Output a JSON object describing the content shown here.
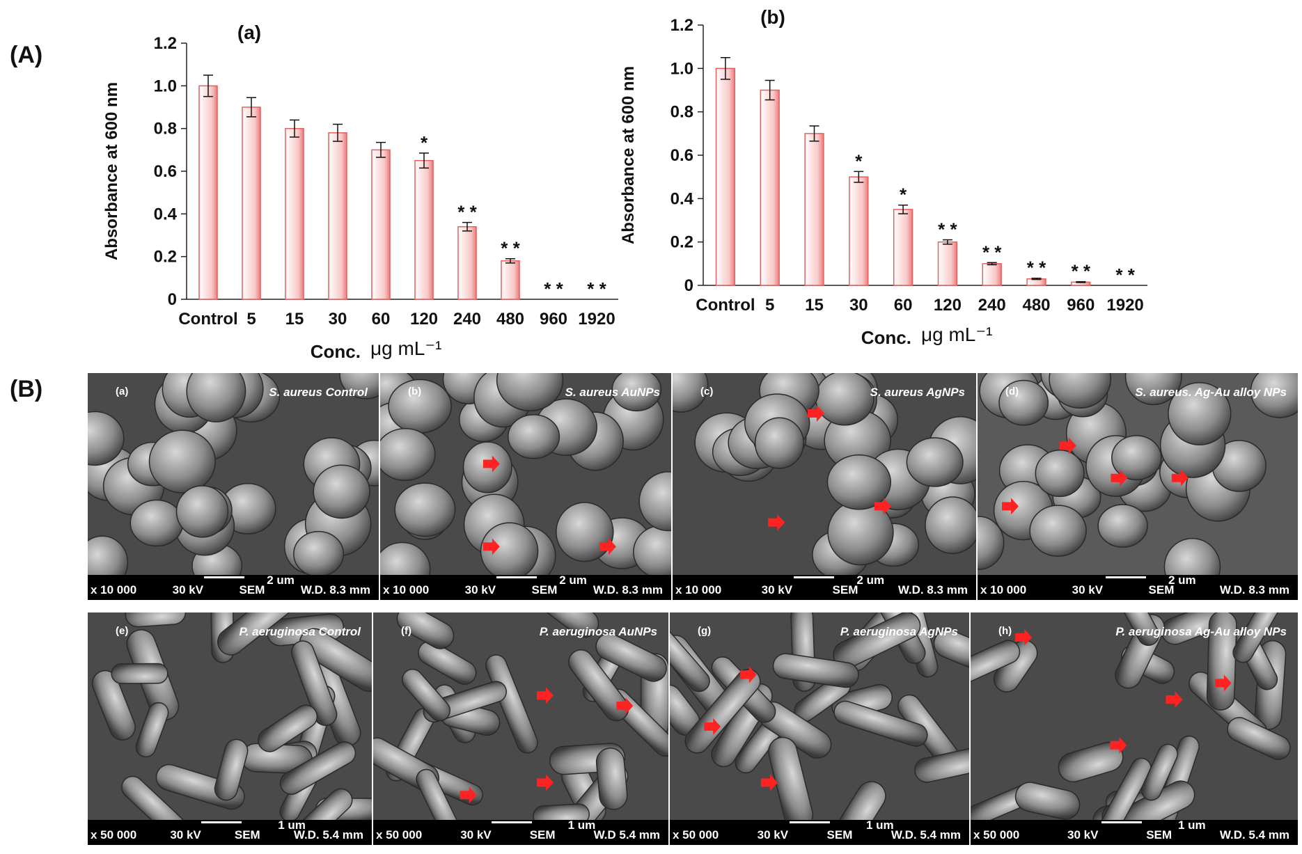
{
  "panels": {
    "A": "(A)",
    "B": "(B)"
  },
  "chart_data": [
    {
      "type": "bar",
      "title": "(a)",
      "ylabel": "Absorbance at 600 nm",
      "xlabel_text": "Conc.",
      "xlabel_unit": "μg mL⁻¹",
      "categories": [
        "Control",
        "5",
        "15",
        "30",
        "60",
        "120",
        "240",
        "480",
        "960",
        "1920"
      ],
      "values": [
        1.0,
        0.9,
        0.8,
        0.78,
        0.7,
        0.65,
        0.34,
        0.18,
        0,
        0
      ],
      "errors": [
        0.05,
        0.045,
        0.04,
        0.04,
        0.035,
        0.035,
        0.02,
        0.01,
        0,
        0
      ],
      "significance": [
        "",
        "",
        "",
        "",
        "",
        "*",
        "* *",
        "* *",
        "* *",
        "* *"
      ],
      "yticks": [
        "0",
        "0.2",
        "0.4",
        "0.6",
        "0.8",
        "1.0",
        "1.2"
      ],
      "ylim": [
        0,
        1.2
      ],
      "bar_color": "#f4a0a0",
      "grid": false
    },
    {
      "type": "bar",
      "title": "(b)",
      "ylabel": "Absorbance at 600 nm",
      "xlabel_text": "Conc.",
      "xlabel_unit": "μg mL⁻¹",
      "categories": [
        "Control",
        "5",
        "15",
        "30",
        "60",
        "120",
        "240",
        "480",
        "960",
        "1920"
      ],
      "values": [
        1.0,
        0.9,
        0.7,
        0.5,
        0.35,
        0.2,
        0.1,
        0.03,
        0.015,
        0
      ],
      "errors": [
        0.05,
        0.045,
        0.035,
        0.025,
        0.02,
        0.01,
        0.005,
        0.003,
        0.002,
        0
      ],
      "significance": [
        "",
        "",
        "",
        "*",
        "*",
        "* *",
        "* *",
        "* *",
        "* *",
        "* *"
      ],
      "yticks": [
        "0",
        "0.2",
        "0.4",
        "0.6",
        "0.8",
        "1.0",
        "1.2"
      ],
      "ylim": [
        0,
        1.2
      ],
      "bar_color": "#f4a0a0",
      "grid": false
    }
  ],
  "sem": [
    {
      "tag": "(a)",
      "title": "S. aureus  Control",
      "scale": "2 um",
      "mag": "x 10 000",
      "kv": "30 kV",
      "mode": "SEM",
      "wd": "W.D. 8.3 mm",
      "shape": "coccus"
    },
    {
      "tag": "(b)",
      "title": "S. aureus  AuNPs",
      "scale": "2 um",
      "mag": "x 10 000",
      "kv": "30 kV",
      "mode": "SEM",
      "wd": "W.D. 8.3 mm",
      "shape": "coccus"
    },
    {
      "tag": "(c)",
      "title": "S. aureus AgNPs",
      "scale": "2 um",
      "mag": "x 10 000",
      "kv": "30 kV",
      "mode": "SEM",
      "wd": "W.D. 8.3 mm",
      "shape": "coccus"
    },
    {
      "tag": "(d)",
      "title": "S. aureus. Ag-Au alloy NPs",
      "scale": "2 um",
      "mag": "x 10 000",
      "kv": "30 kV",
      "mode": "SEM",
      "wd": "W.D. 8.3 mm",
      "shape": "coccus"
    },
    {
      "tag": "(e)",
      "title": "P. aeruginosa Control",
      "scale": "1 um",
      "mag": "x 50 000",
      "kv": "30 kV",
      "mode": "SEM",
      "wd": "W.D.  5.4 mm",
      "shape": "rod"
    },
    {
      "tag": "(f)",
      "title": "P. aeruginosa AuNPs",
      "scale": "1 um",
      "mag": "x 50 000",
      "kv": "30 kV",
      "mode": "SEM",
      "wd": "W.D  5.4 mm",
      "shape": "rod"
    },
    {
      "tag": "(g)",
      "title": "P. aeruginosa AgNPs",
      "scale": "1 um",
      "mag": "x 50 000",
      "kv": "30 kV",
      "mode": "SEM",
      "wd": "W.D. 5.4 mm",
      "shape": "rod"
    },
    {
      "tag": "(h)",
      "title": "P. aeruginosa Ag-Au alloy NPs",
      "scale": "1 um",
      "mag": "x 50 000",
      "kv": "30 kV",
      "mode": "SEM",
      "wd": "W.D. 5.4 mm",
      "shape": "rod"
    }
  ],
  "arrow_color": "#ff2222"
}
